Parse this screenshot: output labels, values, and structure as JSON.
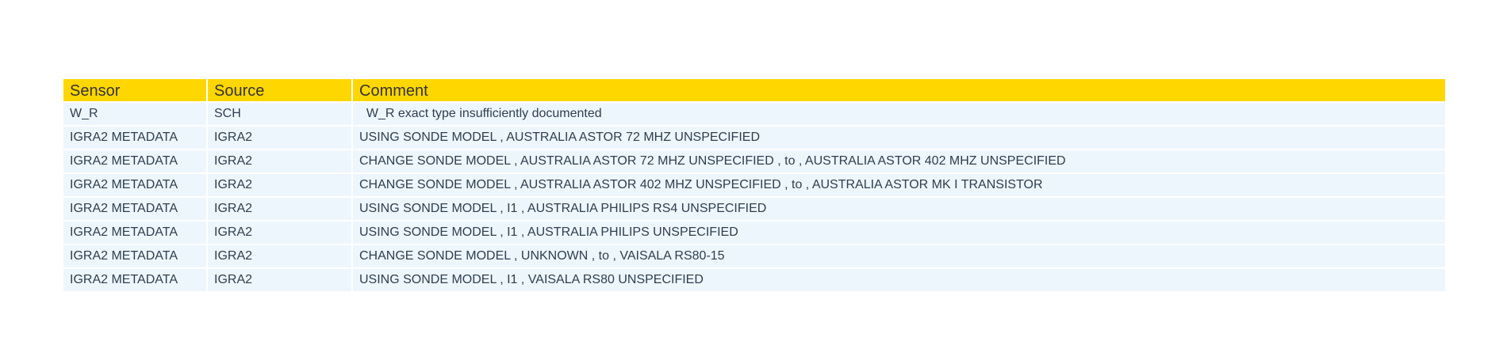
{
  "chart_data": {
    "type": "table",
    "header_color": "#ffd700",
    "cell_color": "#eef6fd",
    "columns": [
      "Sensor",
      "Source",
      "Comment"
    ],
    "rows": [
      [
        "W_R",
        "SCH",
        "  W_R exact type insufficiently documented"
      ],
      [
        "IGRA2 METADATA",
        "IGRA2",
        "USING SONDE MODEL , AUSTRALIA ASTOR 72 MHZ UNSPECIFIED"
      ],
      [
        "IGRA2 METADATA",
        "IGRA2",
        "CHANGE SONDE MODEL , AUSTRALIA ASTOR 72 MHZ UNSPECIFIED , to , AUSTRALIA ASTOR 402 MHZ UNSPECIFIED"
      ],
      [
        "IGRA2 METADATA",
        "IGRA2",
        "CHANGE SONDE MODEL , AUSTRALIA ASTOR 402 MHZ UNSPECIFIED , to , AUSTRALIA ASTOR MK I TRANSISTOR"
      ],
      [
        "IGRA2 METADATA",
        "IGRA2",
        "USING SONDE MODEL , I1 , AUSTRALIA PHILIPS RS4 UNSPECIFIED"
      ],
      [
        "IGRA2 METADATA",
        "IGRA2",
        "USING SONDE MODEL , I1 , AUSTRALIA PHILIPS UNSPECIFIED"
      ],
      [
        "IGRA2 METADATA",
        "IGRA2",
        "CHANGE SONDE MODEL , UNKNOWN , to , VAISALA RS80-15"
      ],
      [
        "IGRA2 METADATA",
        "IGRA2",
        "USING SONDE MODEL , I1 , VAISALA RS80 UNSPECIFIED"
      ]
    ]
  }
}
